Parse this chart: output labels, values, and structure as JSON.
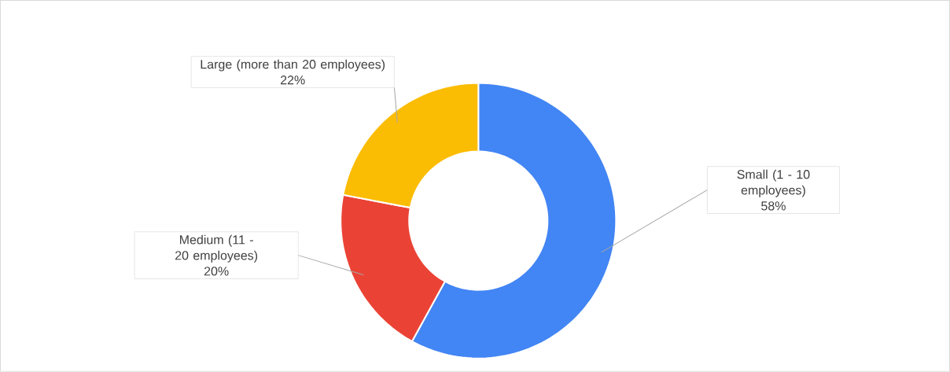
{
  "chart_data": {
    "type": "donut",
    "categories": [
      "Small (1 - 10 employees)",
      "Medium (11 - 20 employees)",
      "Large (more than 20 employees)"
    ],
    "values": [
      58,
      20,
      22
    ],
    "colors": [
      "#4285f4",
      "#ea4335",
      "#fbbc04"
    ],
    "value_labels": [
      "58%",
      "20%",
      "22%"
    ]
  }
}
